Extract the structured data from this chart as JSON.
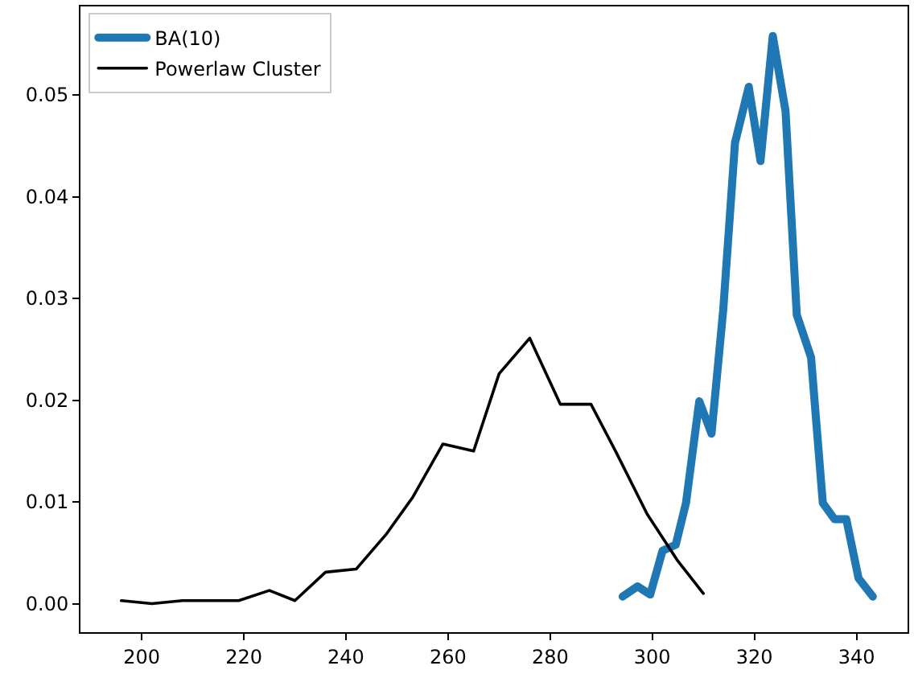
{
  "chart_data": {
    "type": "line",
    "series": [
      {
        "name": "BA(10)",
        "color": "#1f77b4",
        "x": [
          294.2,
          297.1,
          299.6,
          302.0,
          304.6,
          306.6,
          309.2,
          311.6,
          313.9,
          316.2,
          318.9,
          321.2,
          323.6,
          326.1,
          328.3,
          331.1,
          333.4,
          335.7,
          338.0,
          340.4,
          343.2
        ],
        "values": [
          0.0007,
          0.0017,
          0.0009,
          0.0052,
          0.0058,
          0.0099,
          0.0199,
          0.0167,
          0.0289,
          0.0453,
          0.0508,
          0.0435,
          0.0558,
          0.0484,
          0.0284,
          0.0242,
          0.0099,
          0.0083,
          0.0083,
          0.0025,
          0.0007
        ]
      },
      {
        "name": "Powerlaw Cluster",
        "color": "#000000",
        "x": [
          196,
          202,
          208,
          213,
          219,
          225,
          230,
          236,
          242,
          248,
          253,
          259,
          265,
          270,
          276,
          282,
          288,
          293,
          299,
          305,
          310
        ],
        "values": [
          0.0003,
          0.0,
          0.0003,
          0.0003,
          0.0003,
          0.0013,
          0.0003,
          0.0031,
          0.0034,
          0.0069,
          0.0104,
          0.0157,
          0.015,
          0.0226,
          0.0261,
          0.0196,
          0.0196,
          0.0148,
          0.0088,
          0.0042,
          0.001
        ]
      }
    ],
    "xlim": [
      188,
      350
    ],
    "ylim": [
      -0.0028,
      0.0587
    ],
    "xticks": [
      200,
      220,
      240,
      260,
      280,
      300,
      320,
      340
    ],
    "yticks": [
      {
        "value": 0,
        "label": "0.00"
      },
      {
        "value": 0.01,
        "label": "0.01"
      },
      {
        "value": 0.02,
        "label": "0.02"
      },
      {
        "value": 0.03,
        "label": "0.03"
      },
      {
        "value": 0.04,
        "label": "0.04"
      },
      {
        "value": 0.05,
        "label": "0.05"
      }
    ],
    "legend": "top left",
    "line_style": "solid",
    "marker": "none"
  }
}
